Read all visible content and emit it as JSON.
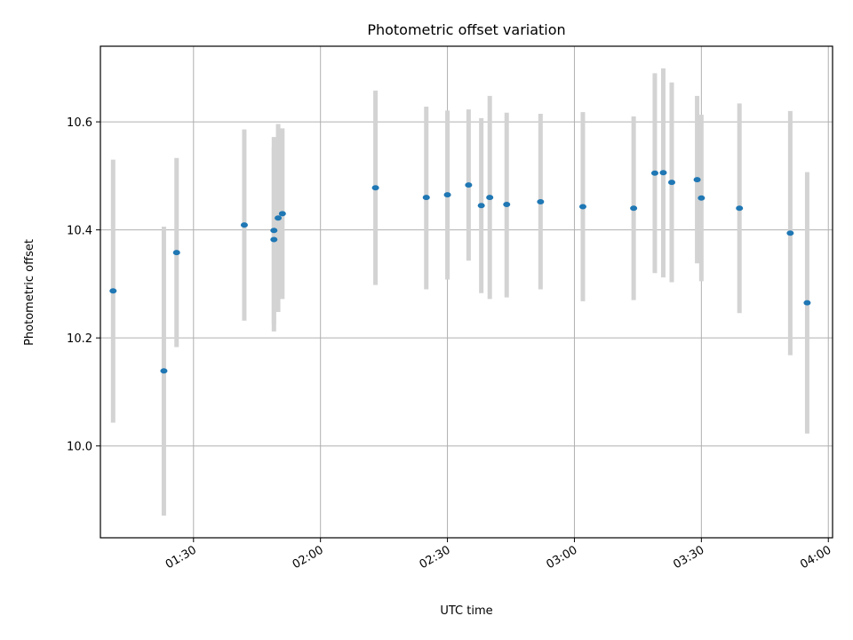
{
  "chart_data": {
    "type": "scatter",
    "title": "Photometric offset variation",
    "xlabel": "UTC time",
    "ylabel": "Photometric offset",
    "xlim": [
      "01:08",
      "04:01"
    ],
    "ylim": [
      9.83,
      10.74
    ],
    "grid": true,
    "x_ticks": [
      "01:30",
      "02:00",
      "02:30",
      "03:00",
      "03:30",
      "04:00"
    ],
    "y_ticks": [
      "10.0",
      "10.2",
      "10.4",
      "10.6"
    ],
    "marker_color": "#1f77b4",
    "errorbar_color": "#d3d3d3",
    "points": [
      {
        "t": "01:11",
        "y": 10.287,
        "ylo": 10.043,
        "yhi": 10.53
      },
      {
        "t": "01:23",
        "y": 10.139,
        "ylo": 9.871,
        "yhi": 10.406
      },
      {
        "t": "01:26",
        "y": 10.358,
        "ylo": 10.183,
        "yhi": 10.533
      },
      {
        "t": "01:42",
        "y": 10.409,
        "ylo": 10.232,
        "yhi": 10.586
      },
      {
        "t": "01:49",
        "y": 10.382,
        "ylo": 10.212,
        "yhi": 10.553
      },
      {
        "t": "01:49",
        "y": 10.399,
        "ylo": 10.226,
        "yhi": 10.572
      },
      {
        "t": "01:50",
        "y": 10.422,
        "ylo": 10.248,
        "yhi": 10.596
      },
      {
        "t": "01:51",
        "y": 10.43,
        "ylo": 10.272,
        "yhi": 10.588
      },
      {
        "t": "02:13",
        "y": 10.478,
        "ylo": 10.298,
        "yhi": 10.658
      },
      {
        "t": "02:25",
        "y": 10.46,
        "ylo": 10.29,
        "yhi": 10.628
      },
      {
        "t": "02:30",
        "y": 10.465,
        "ylo": 10.308,
        "yhi": 10.621
      },
      {
        "t": "02:35",
        "y": 10.483,
        "ylo": 10.343,
        "yhi": 10.623
      },
      {
        "t": "02:38",
        "y": 10.445,
        "ylo": 10.283,
        "yhi": 10.607
      },
      {
        "t": "02:40",
        "y": 10.46,
        "ylo": 10.272,
        "yhi": 10.648
      },
      {
        "t": "02:44",
        "y": 10.447,
        "ylo": 10.275,
        "yhi": 10.617
      },
      {
        "t": "02:52",
        "y": 10.452,
        "ylo": 10.29,
        "yhi": 10.615
      },
      {
        "t": "03:02",
        "y": 10.443,
        "ylo": 10.268,
        "yhi": 10.618
      },
      {
        "t": "03:14",
        "y": 10.44,
        "ylo": 10.27,
        "yhi": 10.61
      },
      {
        "t": "03:19",
        "y": 10.505,
        "ylo": 10.32,
        "yhi": 10.69
      },
      {
        "t": "03:21",
        "y": 10.506,
        "ylo": 10.312,
        "yhi": 10.699
      },
      {
        "t": "03:23",
        "y": 10.488,
        "ylo": 10.303,
        "yhi": 10.673
      },
      {
        "t": "03:29",
        "y": 10.493,
        "ylo": 10.338,
        "yhi": 10.648
      },
      {
        "t": "03:30",
        "y": 10.459,
        "ylo": 10.305,
        "yhi": 10.613
      },
      {
        "t": "03:39",
        "y": 10.44,
        "ylo": 10.246,
        "yhi": 10.634
      },
      {
        "t": "03:51",
        "y": 10.394,
        "ylo": 10.168,
        "yhi": 10.62
      },
      {
        "t": "03:55",
        "y": 10.265,
        "ylo": 10.023,
        "yhi": 10.507
      }
    ]
  }
}
